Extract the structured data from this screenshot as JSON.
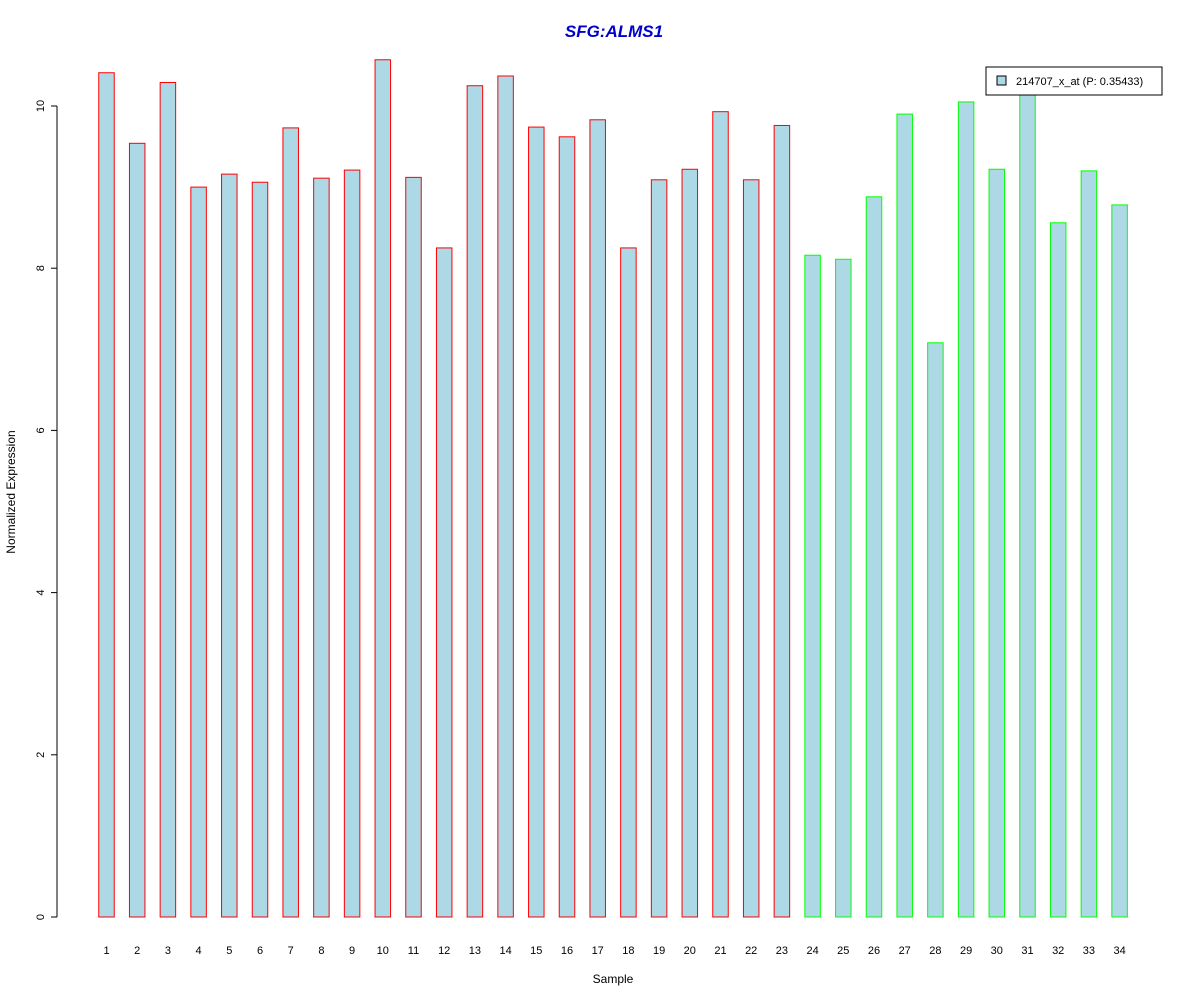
{
  "chart_data": {
    "type": "bar",
    "title": "SFG:ALMS1",
    "xlabel": "Sample",
    "ylabel": "Normalized Expression",
    "categories": [
      "1",
      "2",
      "3",
      "4",
      "5",
      "6",
      "7",
      "8",
      "9",
      "10",
      "11",
      "12",
      "13",
      "14",
      "15",
      "16",
      "17",
      "18",
      "19",
      "20",
      "21",
      "22",
      "23",
      "24",
      "25",
      "26",
      "27",
      "28",
      "29",
      "30",
      "31",
      "32",
      "33",
      "34"
    ],
    "values": [
      10.41,
      9.54,
      10.29,
      9.0,
      9.16,
      9.06,
      9.73,
      9.11,
      9.21,
      10.57,
      9.12,
      8.25,
      10.25,
      10.37,
      9.74,
      9.62,
      9.83,
      8.25,
      9.09,
      9.22,
      9.93,
      9.09,
      9.76,
      8.16,
      8.11,
      8.88,
      9.9,
      7.08,
      10.05,
      9.22,
      10.21,
      8.56,
      9.2,
      8.78
    ],
    "groups": [
      {
        "range": [
          1,
          23
        ],
        "border_color": "#ff0000"
      },
      {
        "range": [
          24,
          34
        ],
        "border_color": "#00ff00"
      }
    ],
    "ylim": [
      0,
      10.5
    ],
    "yticks": [
      0,
      2,
      4,
      6,
      8,
      10
    ],
    "series": [
      {
        "name": "214707_x_at (P: 0.35433)",
        "fill_color": "#add8e6"
      }
    ],
    "legend_position": "top-right",
    "title_color": "#0000cc",
    "grid": false
  }
}
